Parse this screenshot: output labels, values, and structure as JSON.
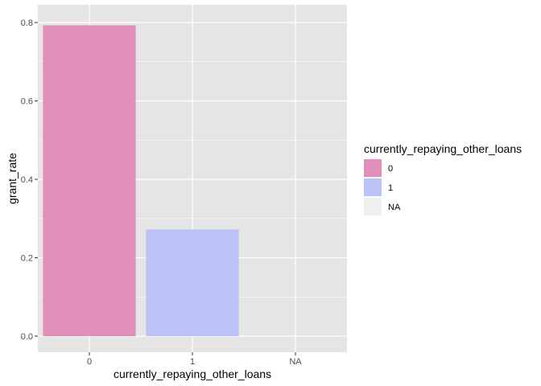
{
  "chart_data": {
    "type": "bar",
    "categories": [
      "0",
      "1",
      "NA"
    ],
    "values": [
      0.793,
      0.272,
      0.0
    ],
    "colors": [
      "#e08fbb",
      "#bbc2f7",
      "#efefef"
    ],
    "xlabel": "currently_repaying_other_loans",
    "ylabel": "grant_rate",
    "ylim": [
      0,
      0.8
    ],
    "yticks": [
      0.0,
      0.2,
      0.4,
      0.6,
      0.8
    ],
    "ytick_labels": [
      "0.0",
      "0.2",
      "0.4",
      "0.6",
      "0.8"
    ],
    "grid": true,
    "panel_background": "#e5e5e5",
    "gridline_color": "#ffffff",
    "legend": {
      "title": "currently_repaying_other_loans",
      "placement": "right",
      "entries": [
        "0",
        "1",
        "NA"
      ]
    }
  }
}
